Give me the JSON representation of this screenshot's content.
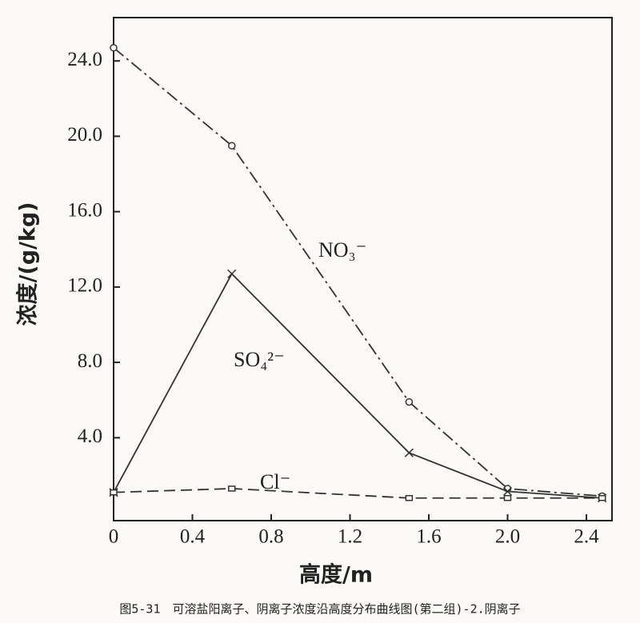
{
  "chart_data": {
    "type": "line",
    "x_label": "高度/m",
    "y_label": "浓度/(g/kg)",
    "caption": "图5-31　可溶盐阳离子、阴离子浓度沿高度分布曲线图(第二组)-2.阴离子",
    "x": [
      0,
      0.6,
      1.5,
      2.0,
      2.48
    ],
    "series": [
      {
        "name": "NO₃⁻",
        "color": "#333333",
        "dash": "dashdot",
        "marker": "circle",
        "values": [
          24.7,
          19.5,
          5.9,
          1.3,
          0.9
        ]
      },
      {
        "name": "SO₄²⁻",
        "color": "#333333",
        "dash": "solid",
        "marker": "cross",
        "values": [
          1.1,
          12.7,
          3.2,
          1.15,
          0.8
        ]
      },
      {
        "name": "Cl⁻",
        "color": "#333333",
        "dash": "dashed",
        "marker": "square",
        "values": [
          1.1,
          1.3,
          0.8,
          0.8,
          0.8
        ]
      }
    ],
    "xlim": [
      0,
      2.53
    ],
    "ylim": [
      -0.4,
      26.3
    ],
    "xticks": [
      0,
      0.4,
      0.8,
      1.2,
      1.6,
      {
        "value": 2,
        "label": "2.0"
      },
      2.4
    ],
    "yticks": [
      {
        "value": 4,
        "label": "4.0"
      },
      {
        "value": 8,
        "label": "8.0"
      },
      {
        "value": 12,
        "label": "12.0"
      },
      {
        "value": 16,
        "label": "16.0"
      },
      {
        "value": 20,
        "label": "20.0"
      },
      {
        "value": 24,
        "label": "24.0"
      }
    ],
    "grid": false
  }
}
